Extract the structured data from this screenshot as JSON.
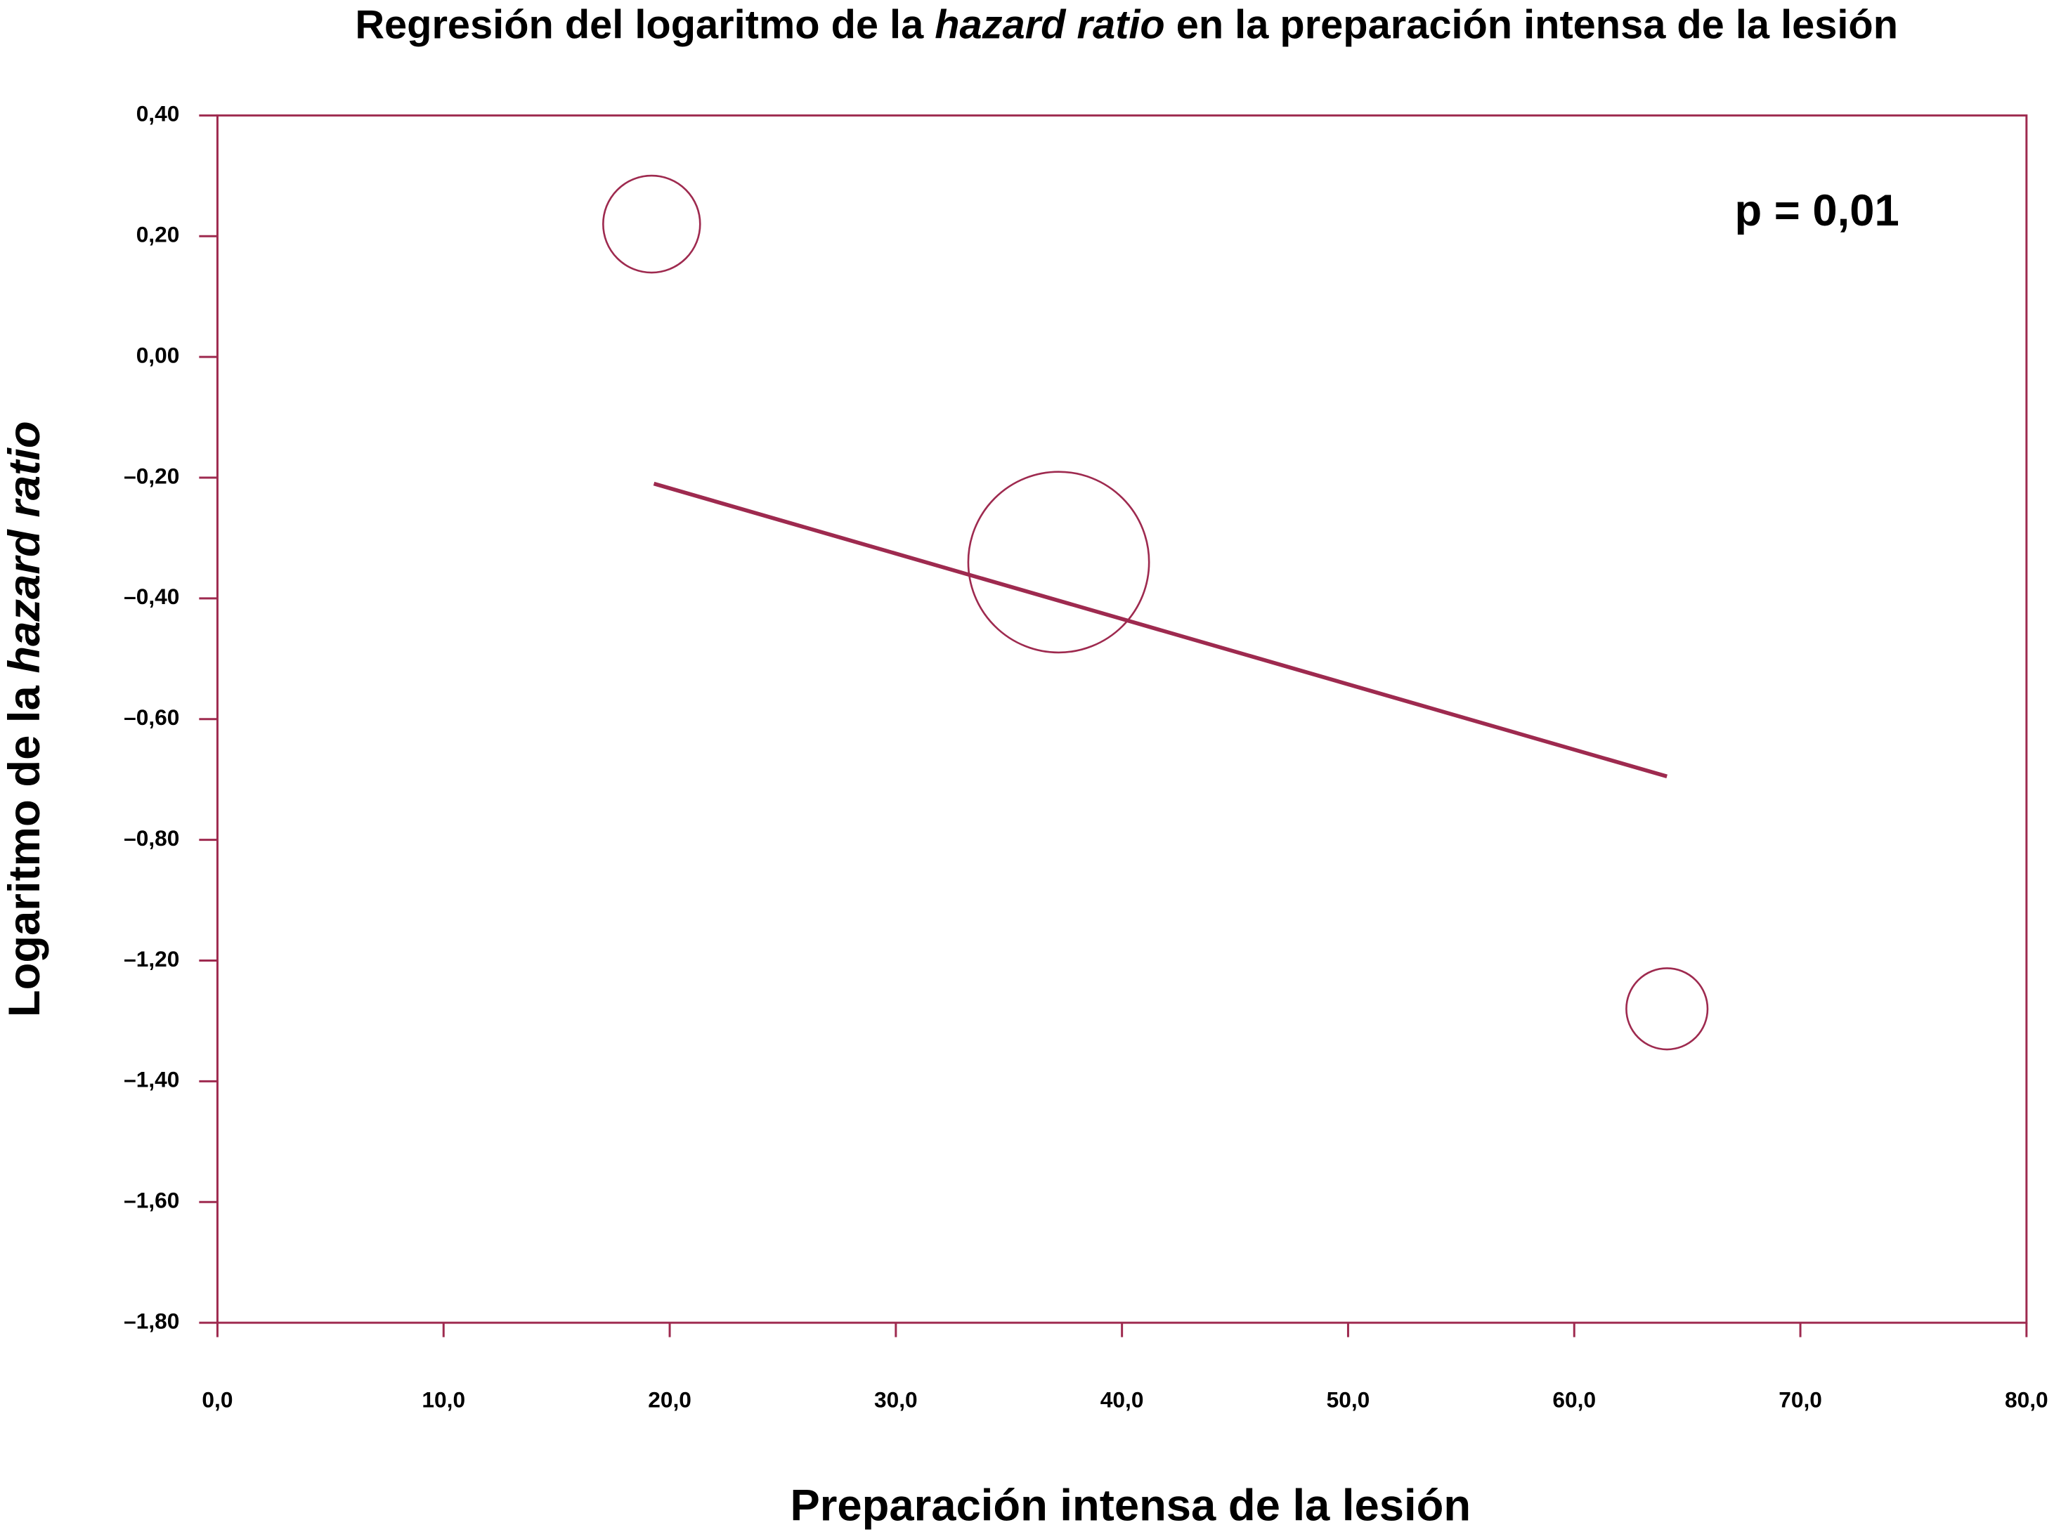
{
  "chart_data": {
    "type": "bubble",
    "title": [
      "Regresión del logaritmo de la ",
      "hazard ratio",
      " en la preparación intensa de la lesión"
    ],
    "xlabel": "Preparación intensa de la lesión",
    "ylabel": [
      "Logaritmo de la ",
      "hazard ratio"
    ],
    "annotation": "p = 0,01",
    "color": "#9e2a4f",
    "x": [
      19.2,
      37.2,
      64.1
    ],
    "values": [
      0.22,
      -0.34,
      -1.28
    ],
    "sizes": [
      37,
      69,
      31
    ],
    "fit": {
      "x": [
        19.3,
        64.1
      ],
      "values": [
        -0.21,
        -0.695
      ]
    },
    "xlim": [
      0,
      80
    ],
    "ylim": [
      -1.8,
      0.4
    ],
    "xticks": [
      {
        "value": 0,
        "label": "0,0"
      },
      {
        "value": 10,
        "label": "10,0"
      },
      {
        "value": 20,
        "label": "20,0"
      },
      {
        "value": 30,
        "label": "30,0"
      },
      {
        "value": 40,
        "label": "40,0"
      },
      {
        "value": 50,
        "label": "50,0"
      },
      {
        "value": 60,
        "label": "60,0"
      },
      {
        "value": 70,
        "label": "70,0"
      },
      {
        "value": 80,
        "label": "80,0"
      }
    ],
    "yticks": [
      {
        "value": 0.4,
        "label": "0,40"
      },
      {
        "value": 0.2,
        "label": "0,20"
      },
      {
        "value": 0,
        "label": "0,00"
      },
      {
        "value": -0.2,
        "label": "–0,20"
      },
      {
        "value": -0.4,
        "label": "–0,40"
      },
      {
        "value": -0.6,
        "label": "–0,60"
      },
      {
        "value": -0.8,
        "label": "–0,80"
      },
      {
        "value": -1.2,
        "label": "–1,20"
      },
      {
        "value": -1.4,
        "label": "–1,40"
      },
      {
        "value": -1.6,
        "label": "–1,60"
      },
      {
        "value": -1.8,
        "label": "–1,80"
      }
    ]
  }
}
